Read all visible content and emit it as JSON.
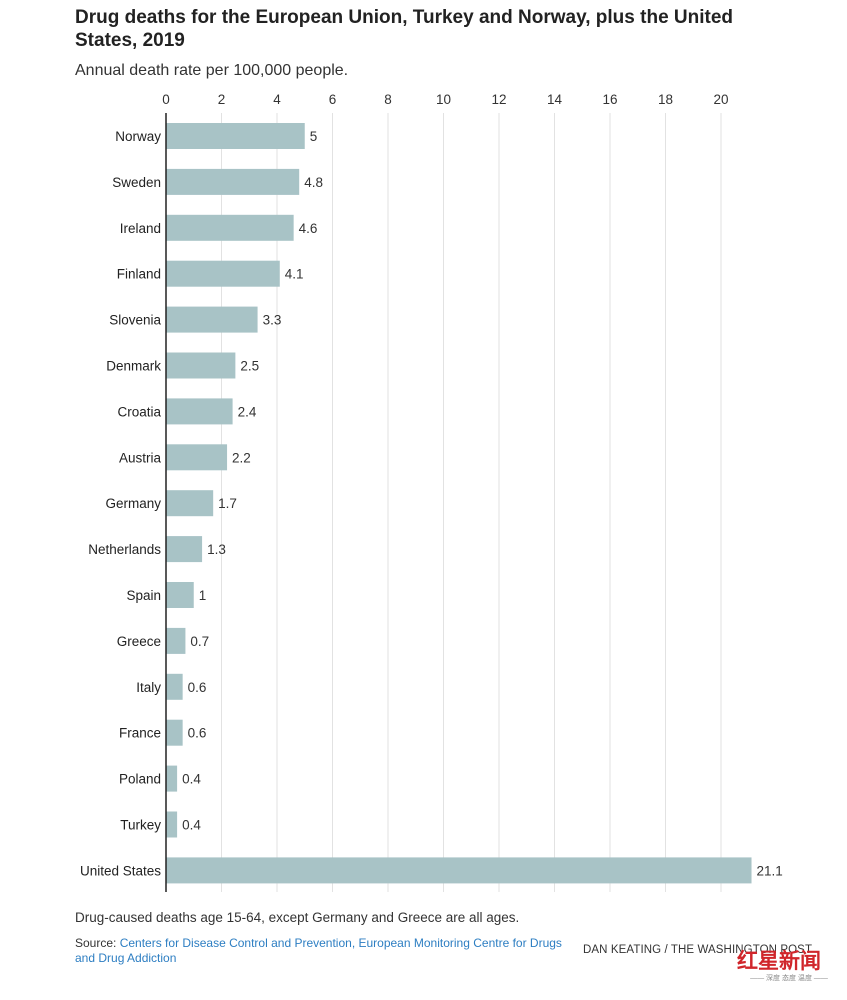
{
  "header": {
    "title": "Drug deaths for the European Union, Turkey and Norway, plus the United States, 2019",
    "subtitle": "Annual death rate per 100,000 people."
  },
  "footer": {
    "note": "Drug-caused deaths age 15-64, except Germany and Greece are all ages.",
    "source_prefix": "Source: ",
    "source_link": "Centers for Disease Control and Prevention, European Monitoring Centre for Drugs and Drug Addiction",
    "credit": "DAN KEATING / THE WASHINGTON POST"
  },
  "watermark": {
    "logo_text": "红星新闻",
    "tagline": "—— 深度 态度 温度 ——"
  },
  "chart_data": {
    "type": "bar",
    "orientation": "horizontal",
    "categories": [
      "Norway",
      "Sweden",
      "Ireland",
      "Finland",
      "Slovenia",
      "Denmark",
      "Croatia",
      "Austria",
      "Germany",
      "Netherlands",
      "Spain",
      "Greece",
      "Italy",
      "France",
      "Poland",
      "Turkey",
      "United States"
    ],
    "values": [
      5,
      4.8,
      4.6,
      4.1,
      3.3,
      2.5,
      2.4,
      2.2,
      1.7,
      1.3,
      1,
      0.7,
      0.6,
      0.6,
      0.4,
      0.4,
      21.1
    ],
    "value_labels": [
      "5",
      "4.8",
      "4.6",
      "4.1",
      "3.3",
      "2.5",
      "2.4",
      "2.2",
      "1.7",
      "1.3",
      "1",
      "0.7",
      "0.6",
      "0.6",
      "0.4",
      "0.4",
      "21.1"
    ],
    "xticks": [
      0,
      2,
      4,
      6,
      8,
      10,
      12,
      14,
      16,
      18,
      20
    ],
    "xlim": [
      0,
      21.1
    ],
    "grid": true,
    "axis_position": "top",
    "bar_color": "#a8c3c6",
    "grid_color": "#e2e2e2",
    "axis_color": "#222222"
  }
}
